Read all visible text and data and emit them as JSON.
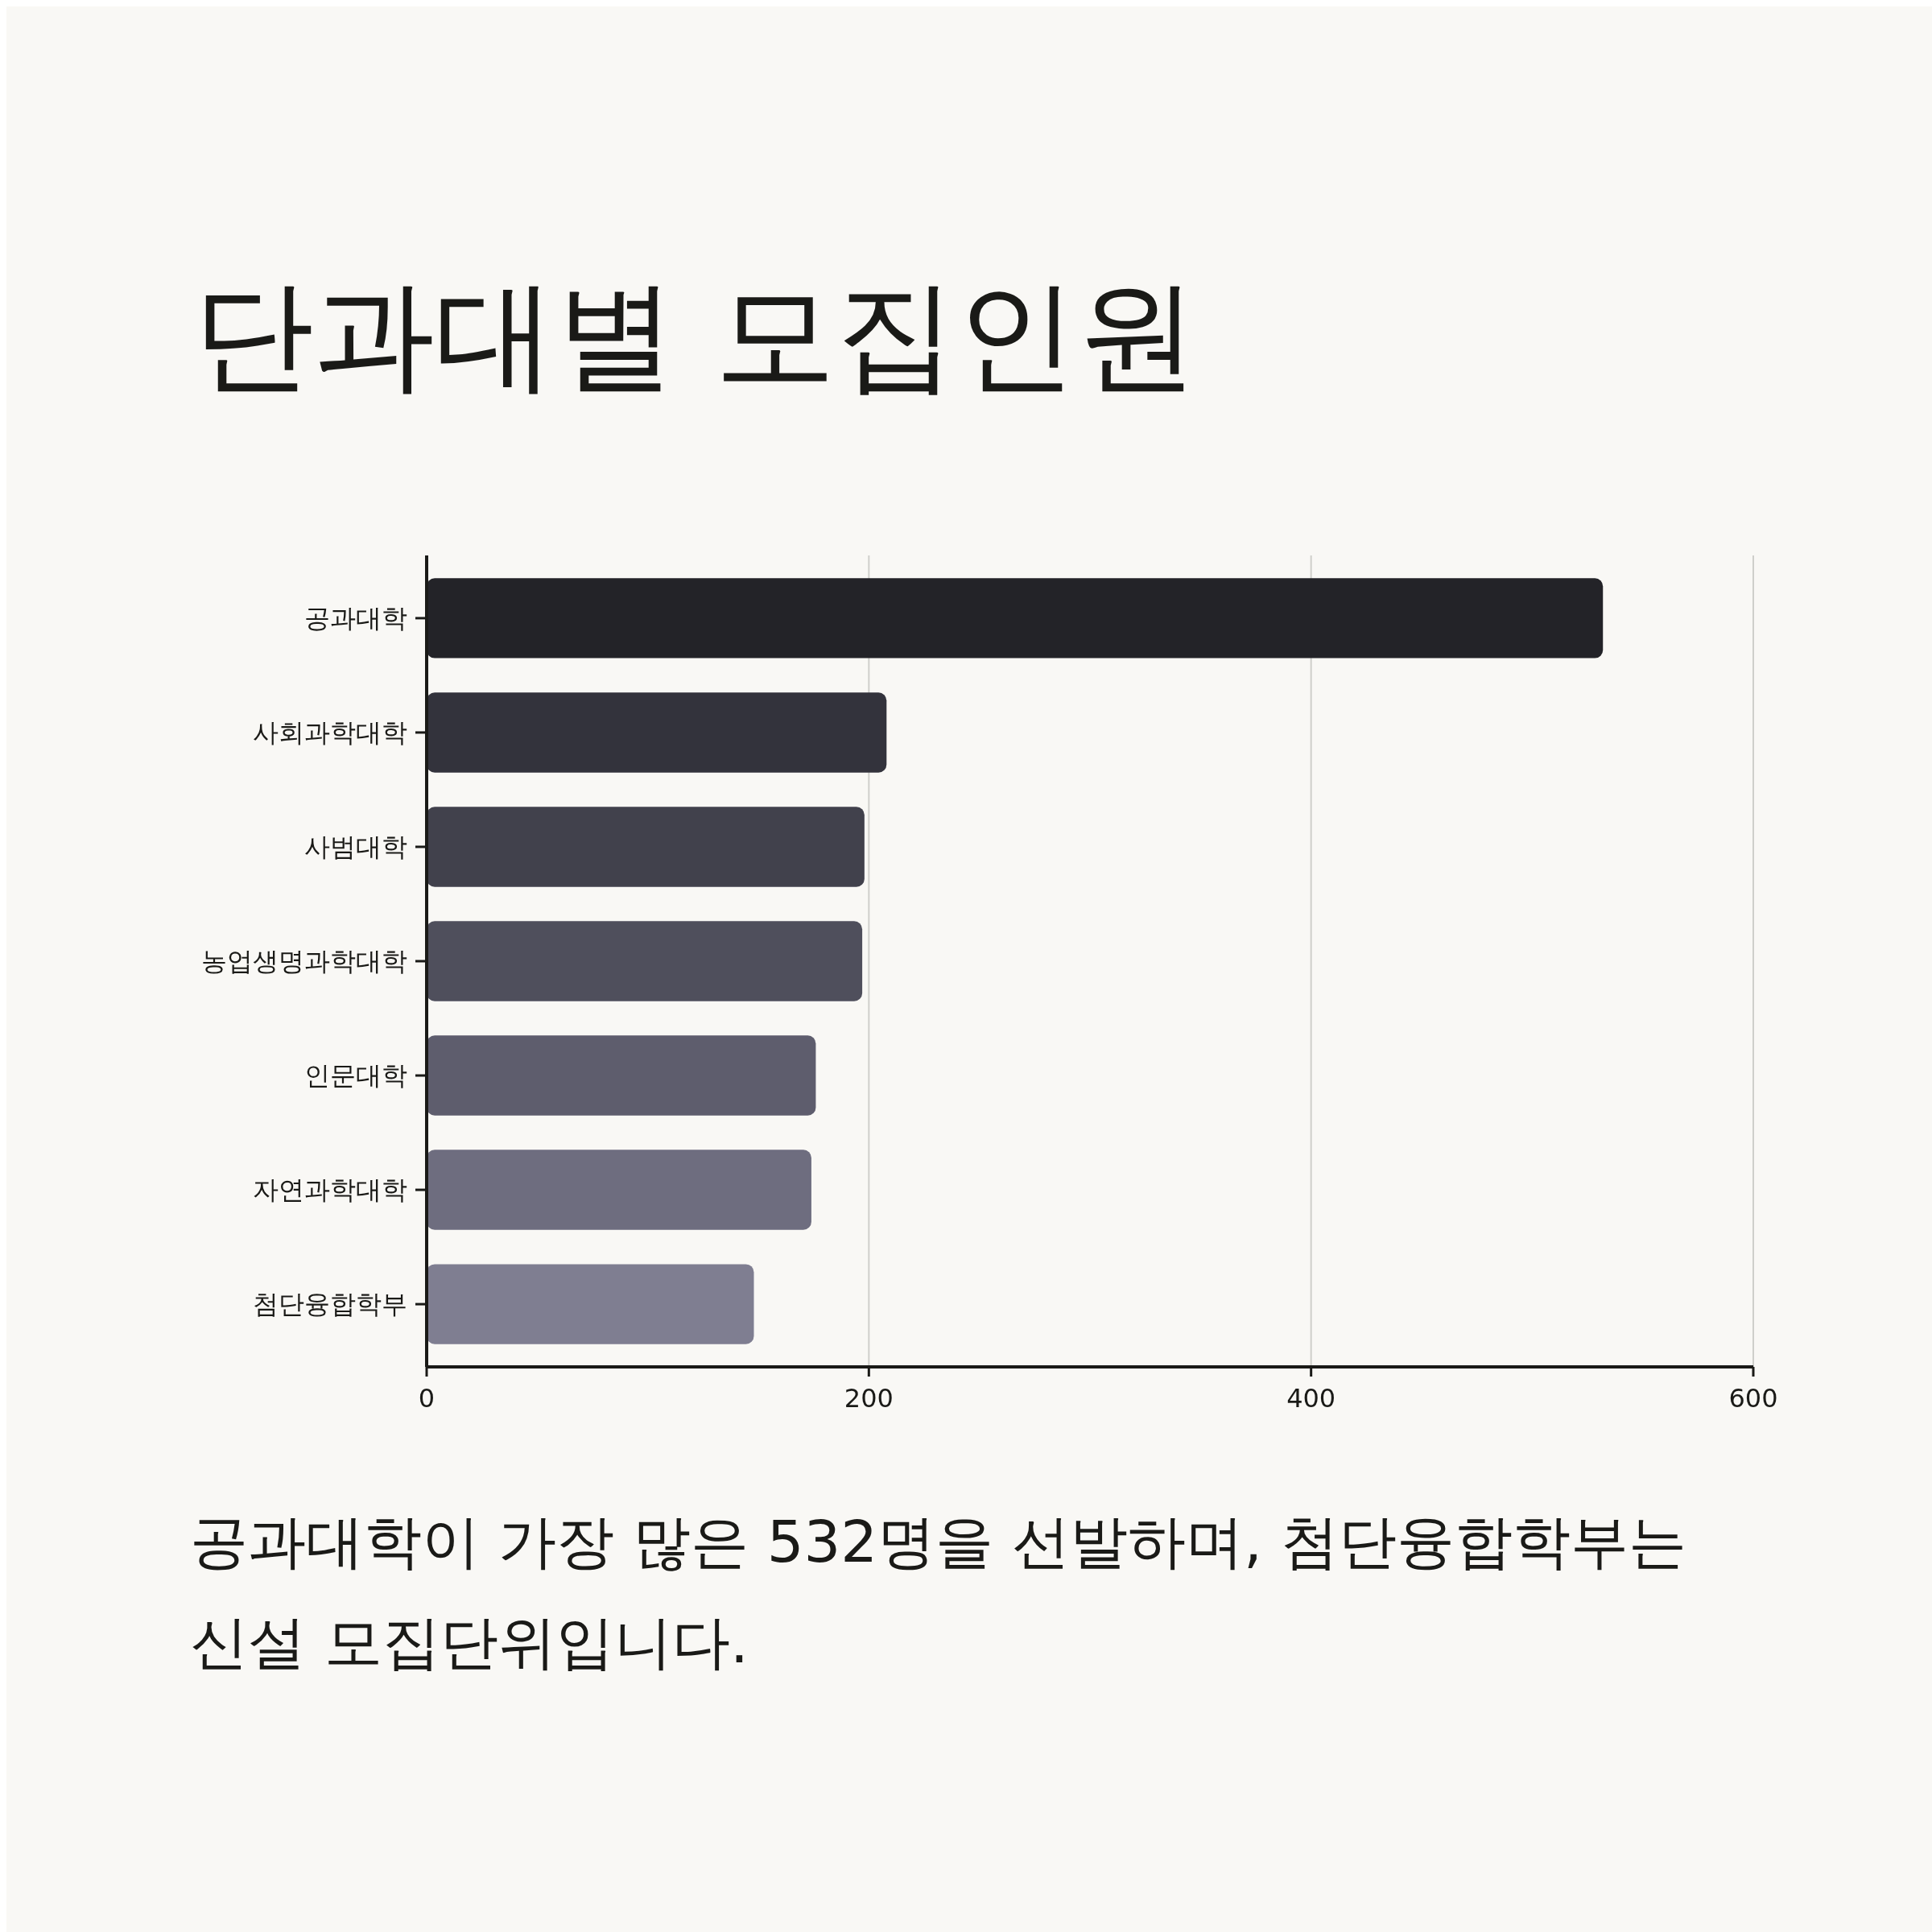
{
  "chart_data": {
    "type": "bar",
    "orientation": "horizontal",
    "title": "단과대별 모집인원",
    "categories": [
      "공과대학",
      "사회과학대학",
      "사범대학",
      "농업생명과학대학",
      "인문대학",
      "자연과학대학",
      "첨단융합학부"
    ],
    "values": [
      532,
      208,
      198,
      197,
      176,
      174,
      148
    ],
    "colors": [
      "#232328",
      "#33333c",
      "#41414c",
      "#4f4f5c",
      "#5e5d6d",
      "#6e6d7f",
      "#7f7e91"
    ],
    "xlim": [
      0,
      600
    ],
    "xticks": [
      0,
      200,
      400,
      600
    ],
    "grid": "x",
    "annotations": [
      "공과대학이 가장 많은 532명을 선발하며, 첨단융합학부는 신설 모집단위입니다."
    ]
  }
}
